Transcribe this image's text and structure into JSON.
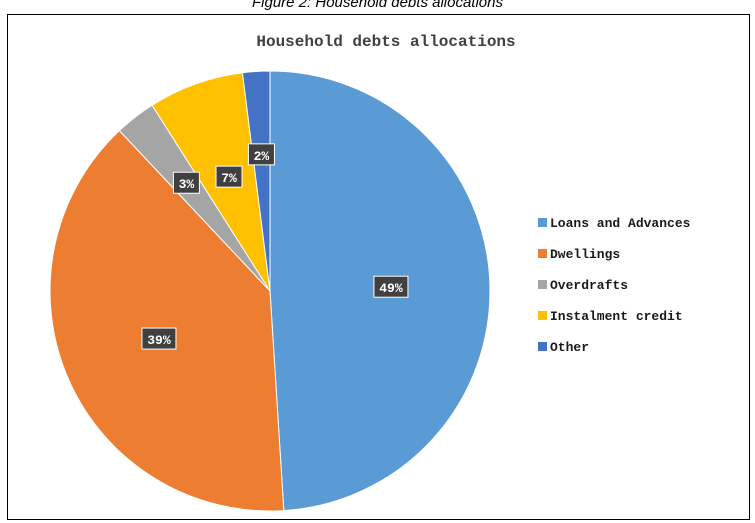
{
  "caption": "Figure 2: Household debts allocations",
  "chart_data": {
    "type": "pie",
    "title": "Household debts allocations",
    "legend_position": "right",
    "slices": [
      {
        "label": "Loans and Advances",
        "value": 49,
        "data_label": "49%",
        "color": "#5B9BD5"
      },
      {
        "label": "Dwellings",
        "value": 39,
        "data_label": "39%",
        "color": "#ED7D31"
      },
      {
        "label": "Overdrafts",
        "value": 3,
        "data_label": "3%",
        "color": "#A5A5A5"
      },
      {
        "label": "Instalment credit",
        "value": 7,
        "data_label": "7%",
        "color": "#FFC000"
      },
      {
        "label": "Other",
        "value": 2,
        "data_label": "2%",
        "color": "#4472C4"
      }
    ]
  }
}
